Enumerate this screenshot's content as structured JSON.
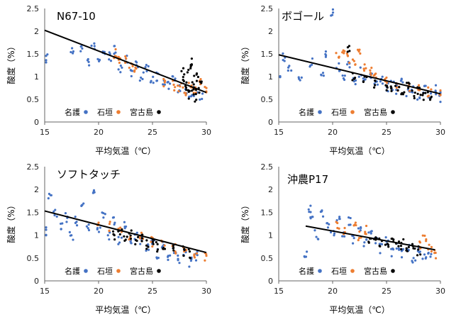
{
  "chart_data": [
    {
      "type": "scatter",
      "title": "N67-10",
      "xlabel": "平均気温（℃）",
      "ylabel": "酸度（%）",
      "xlim": [
        15,
        30
      ],
      "ylim": [
        0,
        2.5
      ],
      "xticks": [
        "15",
        "20",
        "25",
        "30"
      ],
      "yticks": [
        "0",
        "0.5",
        "1",
        "1.5",
        "2",
        "2.5"
      ],
      "legend_placement": "bottom-left",
      "trendline": {
        "x": [
          15,
          30
        ],
        "y": [
          2.02,
          0.65
        ]
      },
      "series": [
        {
          "name": "名護",
          "color": "#4472c4",
          "points": [
            [
              15.2,
              1.4
            ],
            [
              17.5,
              1.55
            ],
            [
              18.5,
              1.6
            ],
            [
              19,
              1.35
            ],
            [
              19.5,
              1.7
            ],
            [
              20,
              1.3
            ],
            [
              20.5,
              1.55
            ],
            [
              21,
              1.45
            ],
            [
              21.5,
              1.6
            ],
            [
              22,
              1.2
            ],
            [
              22.5,
              1.4
            ],
            [
              23,
              1.1
            ],
            [
              23.5,
              1.3
            ],
            [
              24,
              1.0
            ],
            [
              24.5,
              1.15
            ],
            [
              25,
              0.9
            ],
            [
              25.5,
              1.0
            ],
            [
              26,
              0.85
            ],
            [
              26.5,
              0.8
            ],
            [
              27,
              0.95
            ],
            [
              27.5,
              0.75
            ],
            [
              28,
              0.7
            ],
            [
              28.5,
              0.65
            ],
            [
              29,
              0.6
            ],
            [
              29.5,
              0.55
            ]
          ]
        },
        {
          "name": "石垣",
          "color": "#ed7d31",
          "points": [
            [
              21.5,
              1.5
            ],
            [
              22,
              1.4
            ],
            [
              22.5,
              1.35
            ],
            [
              23,
              1.25
            ],
            [
              23.5,
              1.2
            ],
            [
              26,
              0.85
            ],
            [
              27,
              0.8
            ],
            [
              27.5,
              0.75
            ],
            [
              28,
              0.7
            ],
            [
              28.5,
              0.8
            ],
            [
              29,
              0.75
            ],
            [
              29.5,
              0.85
            ],
            [
              30,
              0.7
            ]
          ]
        },
        {
          "name": "宮古島",
          "color": "#000000",
          "points": [
            [
              27.8,
              1.1
            ],
            [
              28,
              0.9
            ],
            [
              28.2,
              0.7
            ],
            [
              28.4,
              1.2
            ],
            [
              28.5,
              0.6
            ],
            [
              28.6,
              1.35
            ],
            [
              28.8,
              0.8
            ],
            [
              28.9,
              0.55
            ],
            [
              29,
              1.0
            ],
            [
              29.2,
              0.65
            ],
            [
              29.4,
              0.9
            ]
          ]
        }
      ]
    },
    {
      "type": "scatter",
      "title": "ボゴール",
      "xlabel": "平均気温（℃）",
      "ylabel": "酸度（%）",
      "xlim": [
        15,
        30
      ],
      "ylim": [
        0,
        2.5
      ],
      "xticks": [
        "15",
        "20",
        "25",
        "30"
      ],
      "yticks": [
        "0",
        "0.5",
        "1",
        "1.5",
        "2",
        "2.5"
      ],
      "legend_placement": "bottom-left",
      "trendline": {
        "x": [
          15,
          30
        ],
        "y": [
          1.48,
          0.62
        ]
      },
      "series": [
        {
          "name": "名護",
          "color": "#4472c4",
          "points": [
            [
              15,
              0.9
            ],
            [
              15.5,
              1.4
            ],
            [
              16,
              1.2
            ],
            [
              17,
              1.0
            ],
            [
              18,
              1.3
            ],
            [
              19,
              1.1
            ],
            [
              19.5,
              1.5
            ],
            [
              20,
              2.4
            ],
            [
              20.5,
              1.2
            ],
            [
              21,
              1.0
            ],
            [
              21.5,
              1.3
            ],
            [
              22,
              0.9
            ],
            [
              22.5,
              1.1
            ],
            [
              23,
              0.85
            ],
            [
              23.5,
              1.0
            ],
            [
              24,
              0.8
            ],
            [
              24.5,
              0.9
            ],
            [
              25,
              0.75
            ],
            [
              25.5,
              0.8
            ],
            [
              26,
              0.7
            ],
            [
              26.5,
              0.85
            ],
            [
              27,
              0.65
            ],
            [
              27.5,
              0.7
            ],
            [
              28,
              0.6
            ],
            [
              28.5,
              0.75
            ],
            [
              29,
              0.6
            ],
            [
              29.5,
              0.7
            ],
            [
              30,
              0.55
            ]
          ]
        },
        {
          "name": "石垣",
          "color": "#ed7d31",
          "points": [
            [
              20.5,
              1.5
            ],
            [
              21,
              1.6
            ],
            [
              21.5,
              1.4
            ],
            [
              22,
              1.3
            ],
            [
              22.5,
              1.5
            ],
            [
              23,
              1.2
            ],
            [
              23.5,
              1.1
            ],
            [
              24,
              1.0
            ],
            [
              25,
              0.9
            ],
            [
              26,
              0.8
            ],
            [
              27,
              0.75
            ],
            [
              28,
              0.7
            ],
            [
              29,
              0.65
            ],
            [
              30,
              0.6
            ]
          ]
        },
        {
          "name": "宮古島",
          "color": "#000000",
          "points": [
            [
              21.5,
              1.6
            ],
            [
              22,
              1.0
            ],
            [
              23,
              0.9
            ],
            [
              24,
              0.85
            ],
            [
              25,
              0.8
            ],
            [
              25.5,
              0.7
            ],
            [
              26,
              0.75
            ],
            [
              26.5,
              0.65
            ],
            [
              27,
              0.8
            ],
            [
              27.5,
              0.6
            ],
            [
              28,
              0.7
            ],
            [
              28.5,
              0.55
            ],
            [
              29,
              0.6
            ]
          ]
        }
      ]
    },
    {
      "type": "scatter",
      "title": "ソフトタッチ",
      "xlabel": "平均気温（℃）",
      "ylabel": "酸度（%）",
      "xlim": [
        15,
        30
      ],
      "ylim": [
        0,
        2.5
      ],
      "xticks": [
        "15",
        "20",
        "25",
        "30"
      ],
      "yticks": [
        "0",
        "0.5",
        "1",
        "1.5",
        "2",
        "2.5"
      ],
      "legend_placement": "bottom-left",
      "trendline": {
        "x": [
          15,
          30
        ],
        "y": [
          1.53,
          0.62
        ]
      },
      "series": [
        {
          "name": "名護",
          "color": "#4472c4",
          "points": [
            [
              15,
              1.1
            ],
            [
              15.5,
              1.8
            ],
            [
              16,
              1.5
            ],
            [
              16.5,
              1.2
            ],
            [
              17,
              1.4
            ],
            [
              17.5,
              1.0
            ],
            [
              18,
              1.3
            ],
            [
              18.5,
              1.6
            ],
            [
              19,
              1.2
            ],
            [
              19.5,
              1.9
            ],
            [
              20,
              1.1
            ],
            [
              20.5,
              1.4
            ],
            [
              21,
              1.0
            ],
            [
              21.5,
              1.3
            ],
            [
              22,
              0.9
            ],
            [
              22.5,
              1.2
            ],
            [
              23,
              0.8
            ],
            [
              23.5,
              1.0
            ],
            [
              24,
              0.9
            ],
            [
              24.5,
              0.7
            ],
            [
              25,
              0.85
            ],
            [
              25.5,
              0.6
            ],
            [
              26,
              0.75
            ],
            [
              26.5,
              0.5
            ],
            [
              27,
              0.7
            ],
            [
              27.5,
              0.45
            ],
            [
              28,
              0.65
            ],
            [
              28.5,
              0.4
            ],
            [
              29,
              0.55
            ]
          ]
        },
        {
          "name": "石垣",
          "color": "#ed7d31",
          "points": [
            [
              20,
              1.3
            ],
            [
              21,
              1.2
            ],
            [
              22,
              1.1
            ],
            [
              23,
              1.0
            ],
            [
              24,
              0.95
            ],
            [
              25,
              0.85
            ],
            [
              26,
              0.8
            ],
            [
              27,
              0.7
            ],
            [
              28,
              0.65
            ],
            [
              29,
              0.6
            ],
            [
              30,
              0.55
            ]
          ]
        },
        {
          "name": "宮古島",
          "color": "#000000",
          "points": [
            [
              21.5,
              1.0
            ],
            [
              22,
              1.1
            ],
            [
              22.5,
              0.9
            ],
            [
              23,
              1.0
            ],
            [
              23.5,
              0.85
            ],
            [
              24,
              0.95
            ],
            [
              24.5,
              0.8
            ],
            [
              25,
              0.9
            ],
            [
              25.5,
              0.75
            ],
            [
              26,
              0.8
            ],
            [
              27,
              0.7
            ],
            [
              28,
              0.65
            ],
            [
              28.5,
              0.6
            ]
          ]
        }
      ]
    },
    {
      "type": "scatter",
      "title": "沖農P17",
      "xlabel": "平均気温（℃）",
      "ylabel": "酸度（%）",
      "xlim": [
        15,
        30
      ],
      "ylim": [
        0,
        2.5
      ],
      "xticks": [
        "15",
        "20",
        "25",
        "30"
      ],
      "yticks": [
        "0",
        "0.5",
        "1",
        "1.5",
        "2",
        "2.5"
      ],
      "legend_placement": "bottom-left",
      "trendline": {
        "x": [
          17.5,
          29.5
        ],
        "y": [
          1.2,
          0.68
        ]
      },
      "series": [
        {
          "name": "名護",
          "color": "#4472c4",
          "points": [
            [
              17.5,
              0.6
            ],
            [
              17.8,
              1.6
            ],
            [
              18,
              1.3
            ],
            [
              18.5,
              1.0
            ],
            [
              19,
              1.5
            ],
            [
              19.5,
              1.2
            ],
            [
              20,
              1.1
            ],
            [
              20.5,
              1.4
            ],
            [
              21,
              1.0
            ],
            [
              21.5,
              1.3
            ],
            [
              22,
              0.9
            ],
            [
              22.5,
              1.2
            ],
            [
              23,
              0.8
            ],
            [
              23.5,
              1.0
            ],
            [
              24,
              0.9
            ],
            [
              24.5,
              0.7
            ],
            [
              25,
              0.85
            ],
            [
              25.5,
              0.6
            ],
            [
              26,
              0.75
            ],
            [
              26.5,
              0.6
            ],
            [
              27,
              0.7
            ],
            [
              27.5,
              0.5
            ],
            [
              28,
              0.65
            ],
            [
              28.5,
              0.55
            ],
            [
              29,
              0.6
            ]
          ]
        },
        {
          "name": "石垣",
          "color": "#ed7d31",
          "points": [
            [
              20.5,
              1.2
            ],
            [
              21,
              1.1
            ],
            [
              22,
              1.3
            ],
            [
              22.5,
              1.0
            ],
            [
              23,
              1.1
            ],
            [
              28,
              0.8
            ],
            [
              28.5,
              0.9
            ],
            [
              29,
              0.7
            ],
            [
              29.5,
              0.6
            ]
          ]
        },
        {
          "name": "宮古島",
          "color": "#000000",
          "points": [
            [
              23.5,
              0.9
            ],
            [
              24,
              1.0
            ],
            [
              24.5,
              0.85
            ],
            [
              25,
              0.8
            ],
            [
              25.5,
              0.9
            ],
            [
              26,
              0.75
            ],
            [
              26.5,
              0.8
            ],
            [
              27,
              0.7
            ],
            [
              27.5,
              0.75
            ],
            [
              28,
              0.65
            ]
          ]
        }
      ]
    }
  ]
}
